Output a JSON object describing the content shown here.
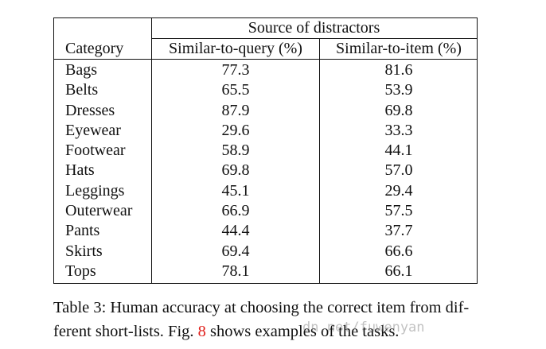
{
  "table": {
    "group_header": "Source of distractors",
    "columns": [
      "Category",
      "Similar-to-query (%)",
      "Similar-to-item (%)"
    ],
    "rows": [
      {
        "category": "Bags",
        "query": "77.3",
        "item": "81.6"
      },
      {
        "category": "Belts",
        "query": "65.5",
        "item": "53.9"
      },
      {
        "category": "Dresses",
        "query": "87.9",
        "item": "69.8"
      },
      {
        "category": "Eyewear",
        "query": "29.6",
        "item": "33.3"
      },
      {
        "category": "Footwear",
        "query": "58.9",
        "item": "44.1"
      },
      {
        "category": "Hats",
        "query": "69.8",
        "item": "57.0"
      },
      {
        "category": "Leggings",
        "query": "45.1",
        "item": "29.4"
      },
      {
        "category": "Outerwear",
        "query": "66.9",
        "item": "57.5"
      },
      {
        "category": "Pants",
        "query": "44.4",
        "item": "37.7"
      },
      {
        "category": "Skirts",
        "query": "69.4",
        "item": "66.6"
      },
      {
        "category": "Tops",
        "query": "78.1",
        "item": "66.1"
      }
    ]
  },
  "caption": {
    "line1": "Table 3:  Human accuracy at choosing the correct item from dif-",
    "line2_before": "ferent short-lists. Fig. ",
    "line2_ref": "8",
    "line2_after": " shows examples of the tasks."
  },
  "watermark": "dn.net/fuwenyan",
  "colors": {
    "text": "#111111",
    "ref_link": "#e0201b"
  }
}
